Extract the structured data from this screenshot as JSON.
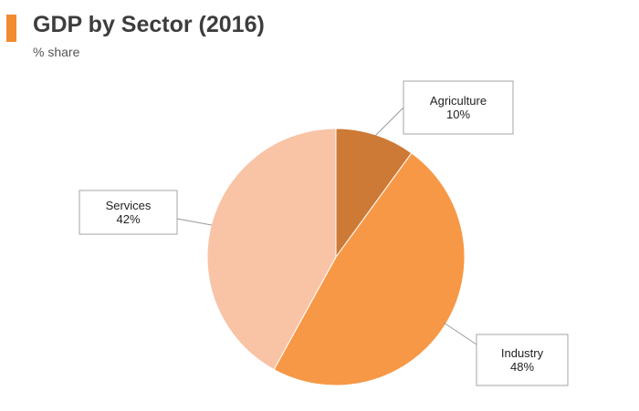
{
  "header": {
    "title": "GDP by Sector (2016)",
    "subtitle": "% share"
  },
  "chart_data": {
    "type": "pie",
    "title": "GDP by Sector (2016)",
    "subtitle": "% share",
    "slices": [
      {
        "label": "Agriculture",
        "value": 10,
        "display": "10%",
        "color": "#cd7a37"
      },
      {
        "label": "Industry",
        "value": 48,
        "display": "48%",
        "color": "#f79846"
      },
      {
        "label": "Services",
        "value": 42,
        "display": "42%",
        "color": "#f9c3a6"
      }
    ],
    "start_angle_deg": 0,
    "direction": "clockwise",
    "legend": "none",
    "labels": "callout-boxes"
  },
  "colors": {
    "accent": "#f28b30",
    "title": "#3d3d3d"
  }
}
